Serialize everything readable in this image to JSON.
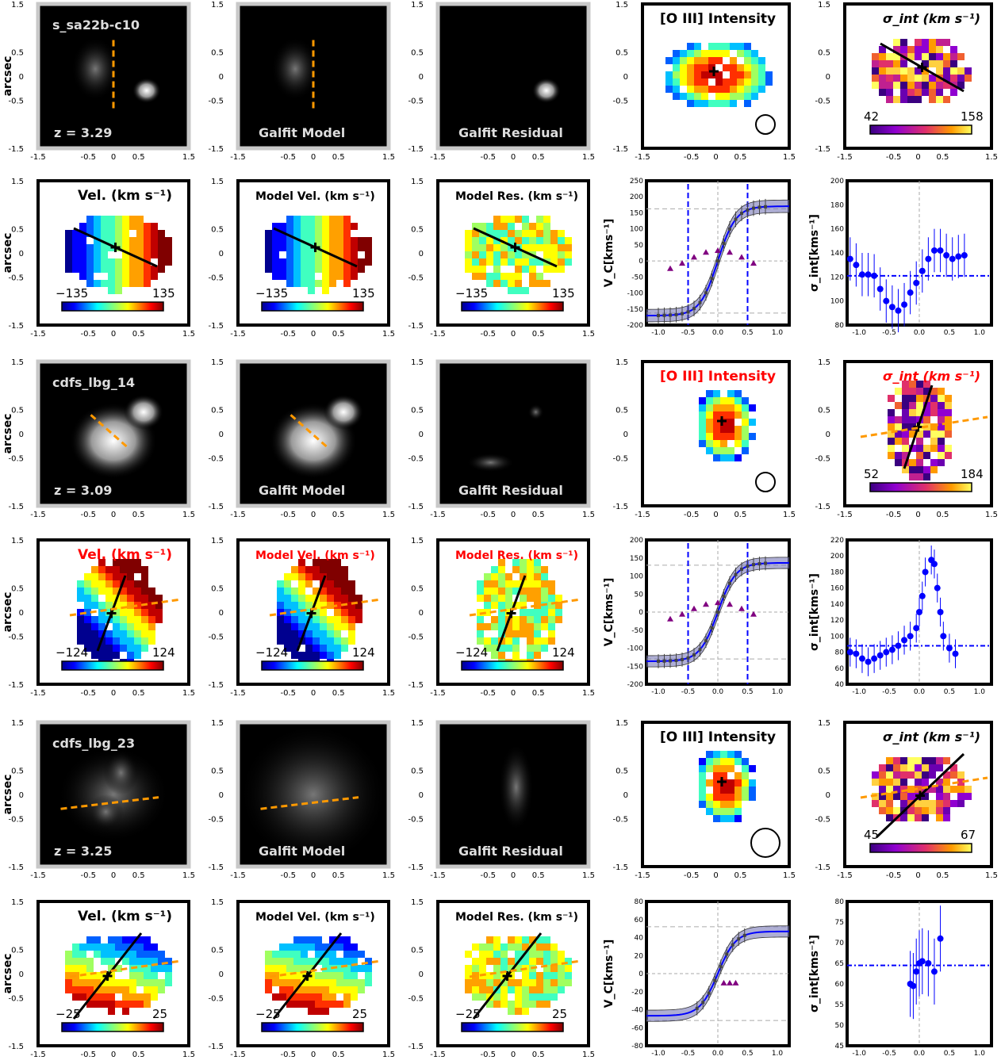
{
  "colors": {
    "frame_black": "#000000",
    "frame_gray": "#c8c8c8",
    "dash_orange": "#ff9900",
    "blue": "#0000ff",
    "purple": "#800080",
    "red_title": "#ff0000"
  },
  "shared": {
    "arcsec": "arcsec",
    "tick15": "1.5",
    "tick05": "0.5",
    "tick0": "0",
    "tickm05": "-0.5",
    "tickm15": "-1.5",
    "rc_ylabel": "V_C[kms⁻¹]",
    "disp_ylabel": "σ_int[kms⁻¹]",
    "oiii_title": "[O III] Intensity",
    "sigma_title": "σ_int (km s⁻¹)",
    "vel_title": "Vel. (km s⁻¹)",
    "model_vel_title": "Model Vel. (km s⁻¹)",
    "model_res_title": "Model Res. (km s⁻¹)",
    "galfit_model": "Galfit Model",
    "galfit_residual": "Galfit Residual"
  },
  "galaxies": [
    {
      "name": "s_sa22b-c10",
      "redshift": "z = 3.29",
      "sigma_range": [
        "42",
        "158"
      ],
      "vel_range": [
        "−135",
        "135"
      ],
      "title_color": "#000000",
      "rc": {
        "ylim": [
          -200,
          250
        ],
        "yticks": [
          "250",
          "200",
          "150",
          "100",
          "50",
          "0",
          "-50",
          "-100",
          "-150",
          "-200"
        ],
        "xticks": [
          "-1.0",
          "-0.5",
          "0.0",
          "0.5",
          "1.0"
        ],
        "xlim": [
          -1.2,
          1.2
        ]
      },
      "disp": {
        "ylim": [
          80,
          200
        ],
        "yticks": [
          "200",
          "180",
          "160",
          "140",
          "120",
          "100",
          "80"
        ],
        "xticks": [
          "-1.0",
          "-0.5",
          "0.0",
          "0.5",
          "1.0"
        ],
        "xlim": [
          -1.2,
          1.2
        ]
      }
    },
    {
      "name": "cdfs_lbg_14",
      "redshift": "z = 3.09",
      "sigma_range": [
        "52",
        "184"
      ],
      "vel_range": [
        "−124",
        "124"
      ],
      "title_color": "#ff0000",
      "rc": {
        "ylim": [
          -200,
          200
        ],
        "yticks": [
          "200",
          "150",
          "100",
          "50",
          "0",
          "-50",
          "-100",
          "-150",
          "-200"
        ],
        "xticks": [
          "-1.0",
          "-0.5",
          "0.0",
          "0.5",
          "1.0"
        ],
        "xlim": [
          -1.2,
          1.2
        ]
      },
      "disp": {
        "ylim": [
          40,
          220
        ],
        "yticks": [
          "220",
          "200",
          "180",
          "160",
          "140",
          "120",
          "100",
          "80",
          "60",
          "40"
        ],
        "xticks": [
          "-1.0",
          "-0.5",
          "0.0",
          "0.5",
          "1.0"
        ],
        "xlim": [
          -1.2,
          1.2
        ]
      }
    },
    {
      "name": "cdfs_lbg_23",
      "redshift": "z = 3.25",
      "sigma_range": [
        "45",
        "67"
      ],
      "vel_range": [
        "−25",
        "25"
      ],
      "title_color": "#000000",
      "rc": {
        "ylim": [
          -80,
          80
        ],
        "yticks": [
          "80",
          "60",
          "40",
          "20",
          "0",
          "-20",
          "-40",
          "-60",
          "-80"
        ],
        "xticks": [
          "-1.0",
          "-0.5",
          "0.0",
          "0.5",
          "1.0"
        ],
        "xlim": [
          -1.2,
          1.2
        ]
      },
      "disp": {
        "ylim": [
          45,
          80
        ],
        "yticks": [
          "80",
          "75",
          "70",
          "65",
          "60",
          "55",
          "50",
          "45"
        ],
        "xticks": [
          "-1.0",
          "-0.5",
          "0.0",
          "0.5",
          "1.0"
        ],
        "xlim": [
          -1.2,
          1.2
        ]
      }
    }
  ]
}
